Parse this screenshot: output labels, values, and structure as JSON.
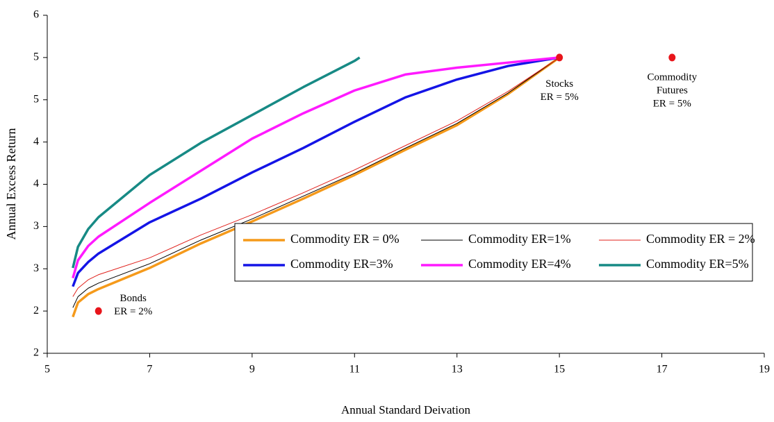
{
  "chart_data": {
    "type": "line",
    "x_label": "Annual Standard Deivation",
    "y_label": "Annual Excess Return",
    "xlim": [
      5,
      19
    ],
    "xticks": [
      5,
      7,
      9,
      11,
      13,
      15,
      17,
      19
    ],
    "ylim": [
      1.5,
      5.5
    ],
    "yticks": [
      {
        "value": 1.5,
        "label": "2"
      },
      {
        "value": 2,
        "label": "2"
      },
      {
        "value": 2.5,
        "label": "3"
      },
      {
        "value": 3,
        "label": "3"
      },
      {
        "value": 3.5,
        "label": "4"
      },
      {
        "value": 4,
        "label": "4"
      },
      {
        "value": 4.5,
        "label": "5"
      },
      {
        "value": 5,
        "label": "5"
      },
      {
        "value": 5.5,
        "label": "6"
      }
    ],
    "grid": false,
    "legend": "center-right",
    "series": [
      {
        "name": "Commodity ER = 0%",
        "color": "#f59a1b",
        "width": 3.5,
        "x": [
          5.5,
          5.6,
          5.8,
          6,
          7,
          8,
          9,
          10,
          11,
          12,
          13,
          14,
          15
        ],
        "values": [
          1.93,
          2.1,
          2.2,
          2.26,
          2.51,
          2.8,
          3.06,
          3.33,
          3.61,
          3.91,
          4.2,
          4.57,
          5
        ]
      },
      {
        "name": "Commodity ER=1%",
        "color": "#000000",
        "width": 1,
        "x": [
          5.5,
          5.6,
          5.8,
          6,
          7,
          8,
          9,
          10,
          11,
          12,
          13,
          14,
          15
        ],
        "values": [
          2.04,
          2.17,
          2.27,
          2.33,
          2.56,
          2.84,
          3.09,
          3.36,
          3.63,
          3.93,
          4.22,
          4.58,
          5
        ]
      },
      {
        "name": "Commodity ER = 2%",
        "color": "#e0201b",
        "width": 1,
        "x": [
          5.5,
          5.6,
          5.8,
          6,
          7,
          8,
          9,
          10,
          11,
          12,
          13,
          14,
          15
        ],
        "values": [
          2.17,
          2.27,
          2.37,
          2.43,
          2.63,
          2.9,
          3.14,
          3.4,
          3.67,
          3.96,
          4.25,
          4.6,
          5
        ]
      },
      {
        "name": "Commodity ER=3%",
        "color": "#1414e6",
        "width": 3.5,
        "x": [
          5.5,
          5.6,
          5.8,
          6,
          7,
          8,
          9,
          10,
          11,
          12,
          13,
          14,
          15
        ],
        "values": [
          2.29,
          2.45,
          2.58,
          2.68,
          3.05,
          3.33,
          3.64,
          3.93,
          4.24,
          4.53,
          4.74,
          4.9,
          5
        ]
      },
      {
        "name": "Commodity ER=4%",
        "color": "#ff1aff",
        "width": 3.5,
        "x": [
          5.5,
          5.6,
          5.8,
          6,
          7,
          8,
          9,
          10,
          11,
          12,
          13,
          14,
          15
        ],
        "values": [
          2.39,
          2.6,
          2.77,
          2.88,
          3.28,
          3.66,
          4.04,
          4.34,
          4.61,
          4.8,
          4.88,
          4.94,
          5
        ]
      },
      {
        "name": "Commodity ER=5%",
        "color": "#178a85",
        "width": 3.5,
        "x": [
          5.5,
          5.6,
          5.8,
          6,
          7,
          8,
          9,
          10,
          11,
          11.1
        ],
        "values": [
          2.51,
          2.76,
          2.97,
          3.11,
          3.61,
          3.99,
          4.32,
          4.65,
          4.96,
          5
        ]
      }
    ],
    "points": {
      "color": "#e8151b",
      "x": [
        15,
        17.2,
        6
      ],
      "values": [
        5,
        5,
        2
      ],
      "labels": [
        [
          "Stocks",
          "ER = 5%"
        ],
        [
          "Commodity",
          "Futures",
          "ER = 5%"
        ],
        [
          "Bonds",
          "ER = 2%"
        ]
      ]
    }
  }
}
